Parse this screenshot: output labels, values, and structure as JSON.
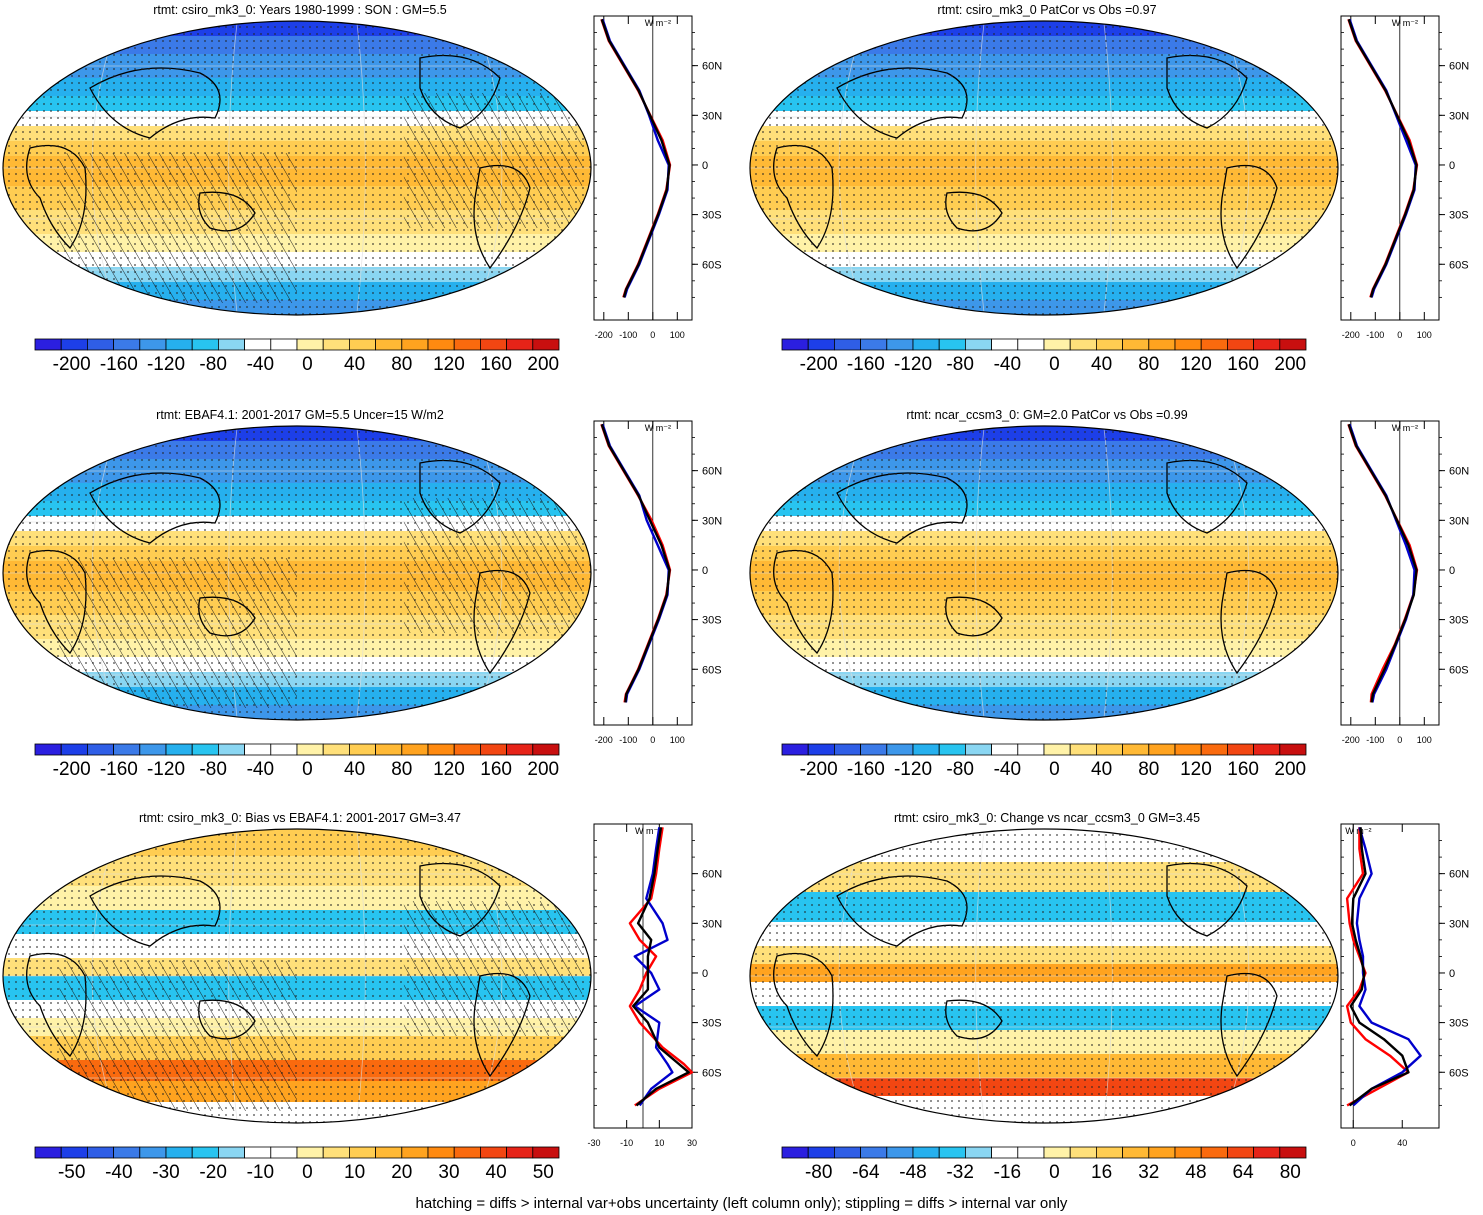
{
  "footer": "hatching = diffs > internal var+obs uncertainty (left column only); stippling = diffs > internal var only",
  "colors": {
    "scale": [
      "#2b1fe0",
      "#1d3fe8",
      "#2f5ee6",
      "#3b7ae8",
      "#3d97ea",
      "#26b0ee",
      "#28c4f0",
      "#8ad6f2",
      "#ffffff",
      "#ffffff",
      "#fff2a8",
      "#ffe07a",
      "#ffcd52",
      "#ffb935",
      "#ffa31f",
      "#ff8a10",
      "#fa6a0e",
      "#f24612",
      "#e62318",
      "#c80f0f"
    ],
    "model_line": "#0000cc",
    "obs_line": "#ff0000",
    "third_line": "#000000"
  },
  "chart_data": [
    {
      "type": "heatmap",
      "title": "rtmt: csiro_mk3_0: Years 1980-1999 : SON : GM=5.5",
      "map_field": "climatology",
      "hatching": true,
      "stippling": true,
      "colorbar_ticks": [
        "-200",
        "-160",
        "-120",
        "-80",
        "-40",
        "0",
        "40",
        "80",
        "120",
        "160",
        "200"
      ],
      "profile": {
        "unit": "W m⁻²",
        "x_ticks": [
          "-200",
          "-100",
          "0",
          "100"
        ],
        "xlim": [
          -240,
          160
        ],
        "y_ticks": [
          "60N",
          "30N",
          "0",
          "30S",
          "60S"
        ],
        "lat": [
          88,
          75,
          60,
          45,
          30,
          15,
          0,
          -15,
          -30,
          -45,
          -60,
          -75,
          -80
        ],
        "series": [
          {
            "values": [
              -210,
              -180,
              -120,
              -60,
              -10,
              40,
              70,
              55,
              20,
              -20,
              -60,
              -110,
              -120
            ]
          },
          {
            "values": [
              -205,
              -175,
              -115,
              -55,
              -15,
              20,
              65,
              60,
              25,
              -15,
              -55,
              -105,
              -115
            ]
          },
          {
            "values": [
              -208,
              -178,
              -118,
              -58,
              -12,
              35,
              68,
              57,
              22,
              -18,
              -58,
              -108,
              -118
            ]
          }
        ]
      }
    },
    {
      "type": "heatmap",
      "title": "rtmt: csiro_mk3_0 PatCor vs Obs =0.97",
      "map_field": "climatology",
      "hatching": false,
      "stippling": true,
      "colorbar_ticks": [
        "-200",
        "-160",
        "-120",
        "-80",
        "-40",
        "0",
        "40",
        "80",
        "120",
        "160",
        "200"
      ],
      "profile": {
        "unit": "W m⁻²",
        "x_ticks": [
          "-200",
          "-100",
          "0",
          "100"
        ],
        "xlim": [
          -240,
          160
        ],
        "y_ticks": [
          "60N",
          "30N",
          "0",
          "30S",
          "60S"
        ],
        "lat": [
          88,
          75,
          60,
          45,
          30,
          15,
          0,
          -15,
          -30,
          -45,
          -60,
          -75,
          -80
        ],
        "series": [
          {
            "values": [
              -210,
              -180,
              -120,
              -60,
              -10,
              40,
              70,
              55,
              20,
              -20,
              -60,
              -110,
              -120
            ]
          },
          {
            "values": [
              -205,
              -175,
              -115,
              -55,
              -15,
              25,
              65,
              60,
              25,
              -15,
              -55,
              -105,
              -115
            ]
          },
          {
            "values": [
              -208,
              -178,
              -118,
              -58,
              -12,
              35,
              68,
              57,
              22,
              -18,
              -58,
              -108,
              -118
            ]
          }
        ]
      }
    },
    {
      "type": "heatmap",
      "title": "rtmt: EBAF4.1: 2001-2017 GM=5.5 Uncer=15 W/m2",
      "map_field": "climatology",
      "hatching": true,
      "stippling": true,
      "colorbar_ticks": [
        "-200",
        "-160",
        "-120",
        "-80",
        "-40",
        "0",
        "40",
        "80",
        "120",
        "160",
        "200"
      ],
      "profile": {
        "unit": "W m⁻²",
        "x_ticks": [
          "-200",
          "-100",
          "0",
          "100"
        ],
        "xlim": [
          -240,
          160
        ],
        "y_ticks": [
          "60N",
          "30N",
          "0",
          "30S",
          "60S"
        ],
        "lat": [
          88,
          75,
          60,
          45,
          30,
          15,
          0,
          -15,
          -30,
          -45,
          -60,
          -75,
          -80
        ],
        "series": [
          {
            "values": [
              -210,
              -180,
              -120,
              -60,
              -5,
              40,
              70,
              55,
              20,
              -20,
              -60,
              -110,
              -115
            ]
          },
          {
            "values": [
              -205,
              -175,
              -115,
              -55,
              -25,
              20,
              65,
              60,
              25,
              -15,
              -55,
              -105,
              -110
            ]
          },
          {
            "values": [
              -208,
              -178,
              -118,
              -58,
              -12,
              35,
              68,
              57,
              22,
              -18,
              -58,
              -108,
              -112
            ]
          }
        ]
      }
    },
    {
      "type": "heatmap",
      "title": "rtmt: ncar_ccsm3_0: GM=2.0 PatCor vs Obs =0.99",
      "map_field": "climatology",
      "hatching": false,
      "stippling": true,
      "colorbar_ticks": [
        "-200",
        "-160",
        "-120",
        "-80",
        "-40",
        "0",
        "40",
        "80",
        "120",
        "160",
        "200"
      ],
      "profile": {
        "unit": "W m⁻²",
        "x_ticks": [
          "-200",
          "-100",
          "0",
          "100"
        ],
        "xlim": [
          -240,
          160
        ],
        "y_ticks": [
          "60N",
          "30N",
          "0",
          "30S",
          "60S"
        ],
        "lat": [
          88,
          75,
          60,
          45,
          30,
          15,
          0,
          -15,
          -30,
          -45,
          -60,
          -75,
          -80
        ],
        "series": [
          {
            "values": [
              -210,
              -180,
              -120,
              -60,
              -10,
              40,
              70,
              55,
              20,
              -20,
              -70,
              -115,
              -118
            ]
          },
          {
            "values": [
              -205,
              -175,
              -115,
              -55,
              -15,
              25,
              60,
              55,
              25,
              -15,
              -55,
              -105,
              -112
            ]
          },
          {
            "values": [
              -208,
              -178,
              -118,
              -58,
              -12,
              35,
              68,
              57,
              22,
              -18,
              -62,
              -110,
              -115
            ]
          }
        ]
      }
    },
    {
      "type": "heatmap",
      "title": "rtmt: csiro_mk3_0: Bias vs EBAF4.1: 2001-2017  GM=3.47",
      "map_field": "bias",
      "hatching": true,
      "stippling": true,
      "colorbar_ticks": [
        "-50",
        "-40",
        "-30",
        "-20",
        "-10",
        "0",
        "10",
        "20",
        "30",
        "40",
        "50"
      ],
      "profile": {
        "unit": "W m⁻²",
        "x_ticks": [
          "-30",
          "-10",
          "10",
          "30"
        ],
        "xlim": [
          -30,
          30
        ],
        "y_ticks": [
          "60N",
          "30N",
          "0",
          "30S",
          "60S"
        ],
        "lat": [
          88,
          75,
          60,
          45,
          30,
          20,
          10,
          0,
          -10,
          -20,
          -30,
          -45,
          -55,
          -60,
          -70,
          -80
        ],
        "series": [
          {
            "values": [
              12,
              10,
              8,
              5,
              -8,
              -2,
              8,
              2,
              -2,
              -8,
              -2,
              12,
              25,
              30,
              10,
              -5
            ]
          },
          {
            "values": [
              10,
              8,
              6,
              2,
              12,
              15,
              -5,
              5,
              10,
              -5,
              10,
              8,
              15,
              18,
              5,
              -2
            ]
          },
          {
            "values": [
              11,
              9,
              7,
              4,
              -3,
              5,
              3,
              3,
              3,
              -6,
              3,
              10,
              22,
              28,
              8,
              -4
            ]
          }
        ]
      }
    },
    {
      "type": "heatmap",
      "title": "rtmt: csiro_mk3_0: Change vs ncar_ccsm3_0 GM=3.45",
      "map_field": "change",
      "hatching": false,
      "stippling": true,
      "colorbar_ticks": [
        "-80",
        "-64",
        "-48",
        "-32",
        "-16",
        "0",
        "16",
        "32",
        "48",
        "64",
        "80"
      ],
      "profile": {
        "unit": "W m⁻²",
        "x_ticks": [
          "0",
          "40"
        ],
        "xlim": [
          -10,
          70
        ],
        "y_ticks": [
          "60N",
          "30N",
          "0",
          "30S",
          "60S"
        ],
        "lat": [
          88,
          75,
          60,
          45,
          30,
          20,
          10,
          0,
          -10,
          -20,
          -30,
          -40,
          -50,
          -60,
          -70,
          -80
        ],
        "series": [
          {
            "values": [
              5,
              5,
              8,
              -5,
              -3,
              0,
              5,
              10,
              5,
              -5,
              -2,
              10,
              30,
              45,
              20,
              -5
            ]
          },
          {
            "values": [
              5,
              10,
              15,
              5,
              3,
              5,
              8,
              8,
              10,
              5,
              15,
              45,
              55,
              40,
              15,
              0
            ]
          },
          {
            "values": [
              6,
              7,
              10,
              0,
              -1,
              2,
              6,
              9,
              7,
              -2,
              5,
              25,
              40,
              45,
              15,
              -3
            ]
          }
        ]
      }
    }
  ]
}
